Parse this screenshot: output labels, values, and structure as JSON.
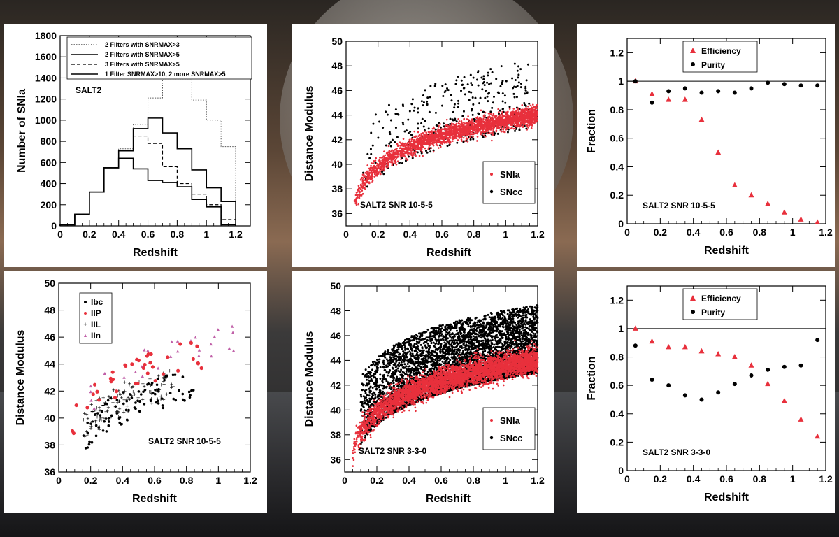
{
  "chart_data": [
    {
      "id": "hist",
      "type": "step-histogram",
      "xlabel": "Redshift",
      "ylabel": "Number of SNIa",
      "annotation": "SALT2",
      "xlim": [
        0,
        1.3
      ],
      "ylim": [
        0,
        1800
      ],
      "xticks": [
        0,
        0.2,
        0.4,
        0.6,
        0.8,
        1,
        1.2
      ],
      "xtick_labels": [
        "0",
        "0.2",
        "0.4",
        "0.6",
        "0.8",
        "1",
        "1.2"
      ],
      "yticks": [
        0,
        200,
        400,
        600,
        800,
        1000,
        1200,
        1400,
        1600,
        1800
      ],
      "bin_edges": [
        0,
        0.1,
        0.2,
        0.3,
        0.4,
        0.5,
        0.6,
        0.7,
        0.8,
        0.9,
        1.0,
        1.1,
        1.2
      ],
      "series": [
        {
          "name": "2 Filters with SNRMAX>3",
          "style": "dotted",
          "values": [
            10,
            110,
            320,
            550,
            730,
            960,
            1210,
            1390,
            1390,
            1190,
            1000,
            750
          ]
        },
        {
          "name": "2 Filters with SNRMAX>5",
          "style": "solid",
          "values": [
            10,
            110,
            320,
            550,
            710,
            920,
            1020,
            880,
            730,
            530,
            360,
            230
          ]
        },
        {
          "name": "3 Filters with SNRMAX>5",
          "style": "dashed",
          "values": [
            10,
            110,
            320,
            550,
            710,
            850,
            780,
            560,
            400,
            300,
            200,
            60
          ]
        },
        {
          "name": "1 Filter SNRMAX>10, 2 more SNRMAX>5",
          "style": "solid",
          "values": [
            10,
            110,
            320,
            550,
            640,
            540,
            430,
            410,
            370,
            250,
            180,
            10
          ]
        }
      ]
    },
    {
      "id": "hubble1",
      "type": "scatter",
      "xlabel": "Redshift",
      "ylabel": "Distance Modulus",
      "annotation": "SALT2 SNR 10-5-5",
      "xlim": [
        0,
        1.2
      ],
      "ylim": [
        35,
        50
      ],
      "xticks": [
        0,
        0.2,
        0.4,
        0.6,
        0.8,
        1,
        1.2
      ],
      "xtick_labels": [
        "0",
        "0.2",
        "0.4",
        "0.6",
        "0.8",
        "1",
        "1.2"
      ],
      "yticks": [
        36,
        38,
        40,
        42,
        44,
        46,
        48,
        50
      ],
      "legend": [
        "SNIa",
        "SNcc"
      ],
      "colors": {
        "SNIa": "#e8303c",
        "SNcc": "#000000"
      },
      "sn_ia": {
        "z_range": [
          0.05,
          1.2
        ],
        "n_points": 2600,
        "scatter_mag": 0.35
      },
      "sn_cc": {
        "z_range": [
          0.1,
          1.15
        ],
        "n_points": 380,
        "mu_offset_range": [
          -1,
          4.5
        ]
      }
    },
    {
      "id": "eff1",
      "type": "scatter",
      "xlabel": "Redshift",
      "ylabel": "Fraction",
      "annotation": "SALT2 SNR 10-5-5",
      "xlim": [
        0,
        1.2
      ],
      "ylim": [
        0,
        1.3
      ],
      "xticks": [
        0,
        0.2,
        0.4,
        0.6,
        0.8,
        1,
        1.2
      ],
      "xtick_labels": [
        "0",
        "0.2",
        "0.4",
        "0.6",
        "0.8",
        "1",
        "1.2"
      ],
      "yticks": [
        0,
        0.2,
        0.4,
        0.6,
        0.8,
        1,
        1.2
      ],
      "ytick_labels": [
        "0",
        "0.2",
        "0.4",
        "0.6",
        "0.8",
        "1",
        "1.2"
      ],
      "reference_line": 1,
      "x": [
        0.05,
        0.15,
        0.25,
        0.35,
        0.45,
        0.55,
        0.65,
        0.75,
        0.85,
        0.95,
        1.05,
        1.15
      ],
      "series": [
        {
          "name": "Efficiency",
          "marker": "triangle",
          "color": "#e8303c",
          "values": [
            1.0,
            0.91,
            0.87,
            0.87,
            0.73,
            0.5,
            0.27,
            0.2,
            0.14,
            0.08,
            0.03,
            0.01
          ]
        },
        {
          "name": "Purity",
          "marker": "circle",
          "color": "#000000",
          "values": [
            1.0,
            0.85,
            0.93,
            0.95,
            0.92,
            0.93,
            0.92,
            0.95,
            0.99,
            0.98,
            0.97,
            0.97
          ]
        }
      ]
    },
    {
      "id": "types",
      "type": "scatter",
      "xlabel": "Redshift",
      "ylabel": "Distance Modulus",
      "annotation": "SALT2 SNR 10-5-5",
      "xlim": [
        0,
        1.2
      ],
      "ylim": [
        36,
        50
      ],
      "xticks": [
        0,
        0.2,
        0.4,
        0.6,
        0.8,
        1,
        1.2
      ],
      "xtick_labels": [
        "0",
        "0.2",
        "0.4",
        "0.6",
        "0.8",
        "1",
        "1.2"
      ],
      "yticks": [
        36,
        38,
        40,
        42,
        44,
        46,
        48,
        50
      ],
      "legend": [
        "Ibc",
        "IIP",
        "IIL",
        "IIn"
      ],
      "colors": {
        "Ibc": "#000000",
        "IIP": "#e8303c",
        "IIL": "#2eaa55",
        "IIn": "#c060a8"
      },
      "Ibc": {
        "z_range": [
          0.15,
          0.85
        ],
        "n_points": 95,
        "mu_offset_range": [
          -1.8,
          0.6
        ]
      },
      "IIP": {
        "z_range": [
          0.08,
          0.9
        ],
        "n_points": 40,
        "mu_offset_range": [
          0.4,
          2.6
        ]
      },
      "IIL": {
        "z_range": [
          0.15,
          0.72
        ],
        "n_points": 115,
        "mu_offset_range": [
          -1.2,
          1.2
        ]
      },
      "IIn": {
        "z_range": [
          0.2,
          1.12
        ],
        "n_points": 30,
        "mu_offset_range": [
          0.5,
          3.2
        ]
      }
    },
    {
      "id": "hubble2",
      "type": "scatter",
      "xlabel": "Redshift",
      "ylabel": "Distance Modulus",
      "annotation": "SALT2 SNR 3-3-0",
      "xlim": [
        0,
        1.2
      ],
      "ylim": [
        35,
        50
      ],
      "xticks": [
        0,
        0.2,
        0.4,
        0.6,
        0.8,
        1,
        1.2
      ],
      "xtick_labels": [
        "0",
        "0.2",
        "0.4",
        "0.6",
        "0.8",
        "1",
        "1.2"
      ],
      "yticks": [
        36,
        38,
        40,
        42,
        44,
        46,
        48,
        50
      ],
      "legend": [
        "SNIa",
        "SNcc"
      ],
      "colors": {
        "SNIa": "#e8303c",
        "SNcc": "#000000"
      },
      "sn_ia": {
        "z_range": [
          0.05,
          1.2
        ],
        "n_points": 4200,
        "scatter_mag": 0.5
      },
      "sn_cc": {
        "z_range": [
          0.1,
          1.2
        ],
        "n_points": 4800,
        "mu_offset_range": [
          -1,
          4.5
        ]
      }
    },
    {
      "id": "eff2",
      "type": "scatter",
      "xlabel": "Redshift",
      "ylabel": "Fraction",
      "annotation": "SALT2 SNR 3-3-0",
      "xlim": [
        0,
        1.2
      ],
      "ylim": [
        0,
        1.3
      ],
      "xticks": [
        0,
        0.2,
        0.4,
        0.6,
        0.8,
        1,
        1.2
      ],
      "xtick_labels": [
        "0",
        "0.2",
        "0.4",
        "0.6",
        "0.8",
        "1",
        "1.2"
      ],
      "yticks": [
        0,
        0.2,
        0.4,
        0.6,
        0.8,
        1,
        1.2
      ],
      "ytick_labels": [
        "0",
        "0.2",
        "0.4",
        "0.6",
        "0.8",
        "1",
        "1.2"
      ],
      "reference_line": 1,
      "x": [
        0.05,
        0.15,
        0.25,
        0.35,
        0.45,
        0.55,
        0.65,
        0.75,
        0.85,
        0.95,
        1.05,
        1.15
      ],
      "series": [
        {
          "name": "Efficiency",
          "marker": "triangle",
          "color": "#e8303c",
          "values": [
            1.0,
            0.91,
            0.87,
            0.87,
            0.84,
            0.82,
            0.8,
            0.74,
            0.61,
            0.49,
            0.36,
            0.24
          ]
        },
        {
          "name": "Purity",
          "marker": "circle",
          "color": "#000000",
          "values": [
            0.88,
            0.64,
            0.6,
            0.53,
            0.5,
            0.55,
            0.61,
            0.67,
            0.71,
            0.73,
            0.74,
            0.92
          ]
        }
      ]
    }
  ]
}
